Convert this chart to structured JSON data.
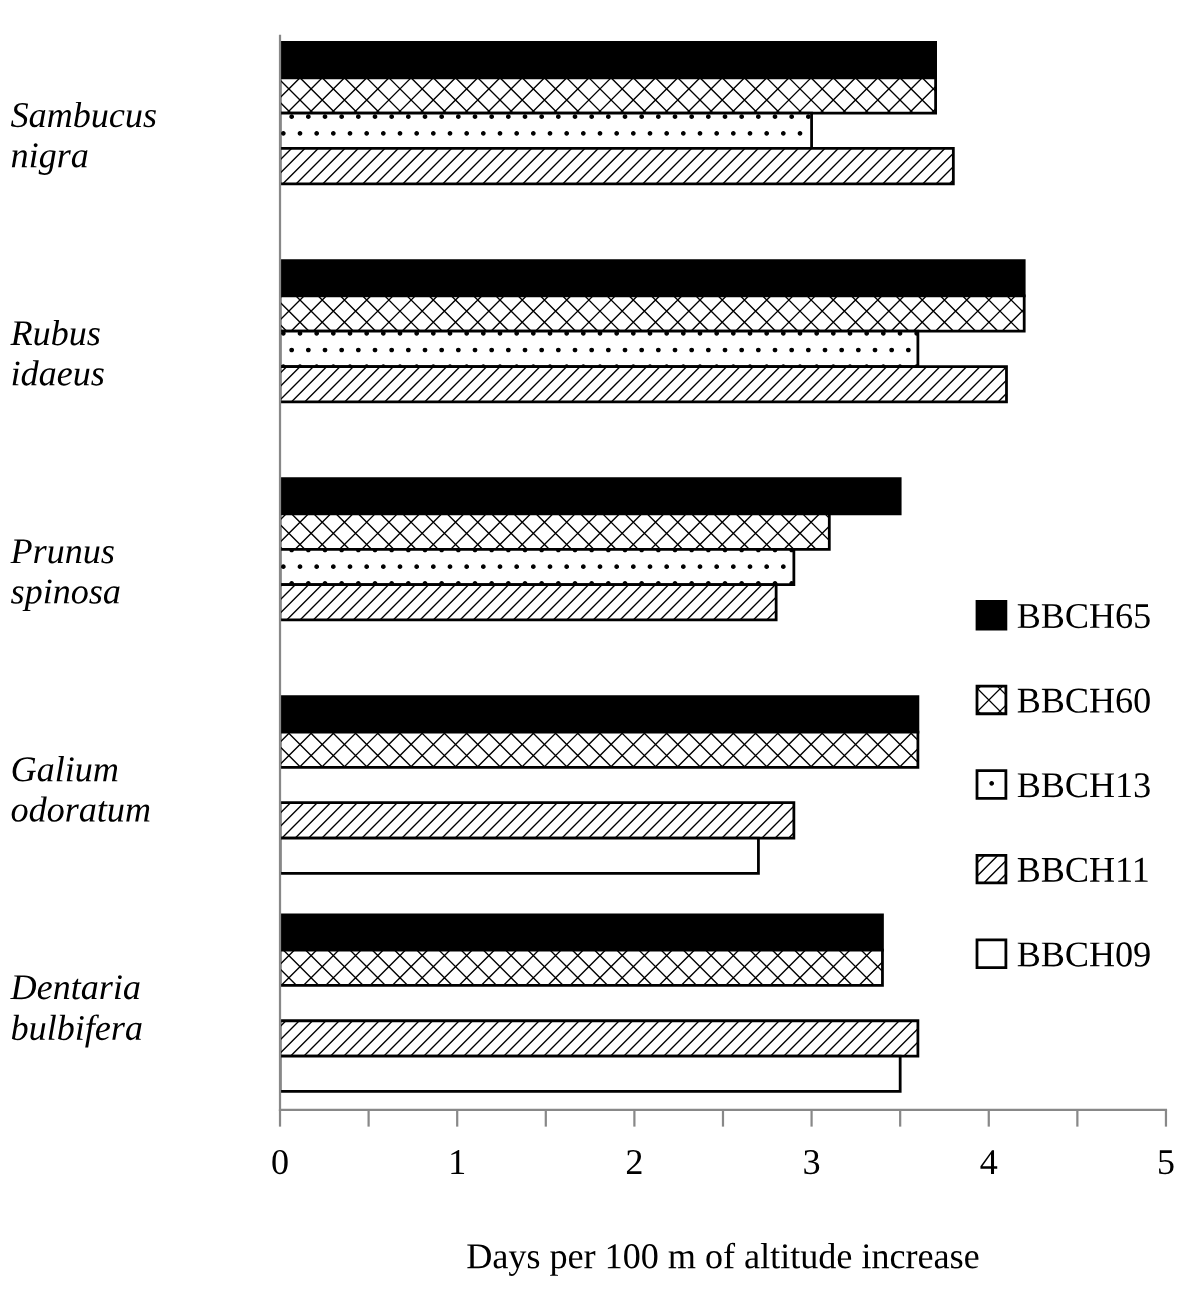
{
  "chart_data": {
    "type": "bar",
    "orientation": "horizontal",
    "xlabel": "Days per 100 m of altitude increase",
    "categories": [
      "Sambucus nigra",
      "Rubus idaeus",
      "Prunus spinosa",
      "Galium odoratum",
      "Dentaria bulbifera"
    ],
    "series": [
      {
        "name": "BBCH65",
        "color": "#000000",
        "values": [
          3.7,
          4.2,
          3.5,
          3.6,
          3.4
        ]
      },
      {
        "name": "BBCH60",
        "color": "#ffffff",
        "values": [
          3.7,
          4.2,
          3.1,
          3.6,
          3.4
        ]
      },
      {
        "name": "BBCH13",
        "color": "#ffffff",
        "values": [
          3.0,
          3.6,
          2.9,
          null,
          null
        ]
      },
      {
        "name": "BBCH11",
        "color": "#ffffff",
        "values": [
          3.8,
          4.1,
          2.8,
          2.9,
          3.6
        ]
      },
      {
        "name": "BBCH09",
        "color": "#ffffff",
        "values": [
          null,
          null,
          null,
          2.7,
          3.5
        ]
      }
    ],
    "xlim": [
      0,
      5
    ],
    "xticks": [
      0,
      {
        "value": 0.5,
        "label": null
      },
      1,
      {
        "value": 1.5,
        "label": null
      },
      2,
      {
        "value": 2.5,
        "label": null
      },
      3,
      {
        "value": 3.5,
        "label": null
      },
      4,
      {
        "value": 4.5,
        "label": null
      },
      5
    ],
    "grid": false,
    "legend": "right"
  }
}
